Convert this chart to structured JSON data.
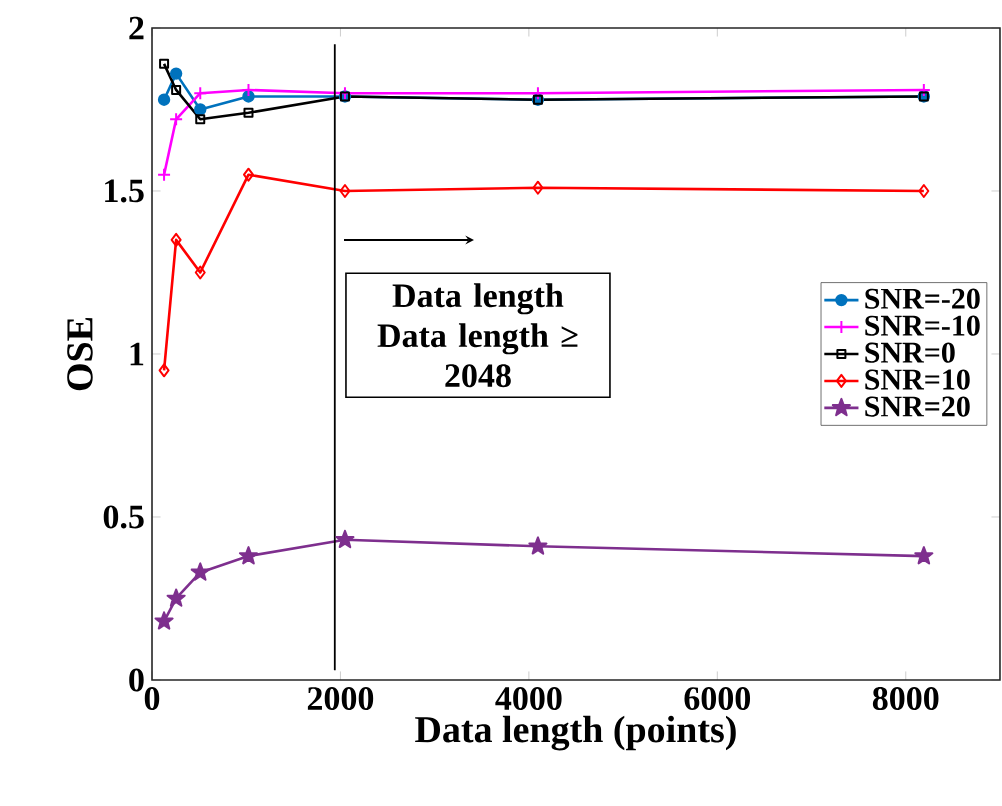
{
  "chart_data": {
    "type": "line",
    "xlabel": "Data length (points)",
    "ylabel": "OSE",
    "xlim": [
      0,
      9000
    ],
    "ylim": [
      0,
      2
    ],
    "xticks": [
      0,
      2000,
      4000,
      6000,
      8000
    ],
    "yticks": [
      0,
      0.5,
      1,
      1.5,
      2
    ],
    "x": [
      128,
      256,
      512,
      1024,
      2048,
      4096,
      8192
    ],
    "series": [
      {
        "name": "SNR=-20",
        "color": "#0072bd",
        "marker": "circle",
        "values": [
          1.78,
          1.86,
          1.75,
          1.79,
          1.79,
          1.78,
          1.79
        ]
      },
      {
        "name": "SNR=-10",
        "color": "#ff00ff",
        "marker": "cross",
        "values": [
          1.55,
          1.72,
          1.8,
          1.81,
          1.8,
          1.8,
          1.81
        ]
      },
      {
        "name": "SNR=0",
        "color": "#000000",
        "marker": "square",
        "values": [
          1.89,
          1.81,
          1.72,
          1.74,
          1.79,
          1.78,
          1.79
        ]
      },
      {
        "name": "SNR=10",
        "color": "#ff0000",
        "marker": "diamond",
        "values": [
          0.95,
          1.35,
          1.25,
          1.55,
          1.5,
          1.51,
          1.5
        ]
      },
      {
        "name": "SNR=20",
        "color": "#7e2f8e",
        "marker": "star",
        "values": [
          0.18,
          0.25,
          0.33,
          0.38,
          0.43,
          0.41,
          0.38
        ]
      }
    ],
    "ref_lines": [
      {
        "axis": "x",
        "value": 1940,
        "color": "#000000"
      }
    ],
    "annotations": [
      "Data length",
      "Data length ≥",
      "2048"
    ],
    "legend": "right",
    "grid": false
  }
}
